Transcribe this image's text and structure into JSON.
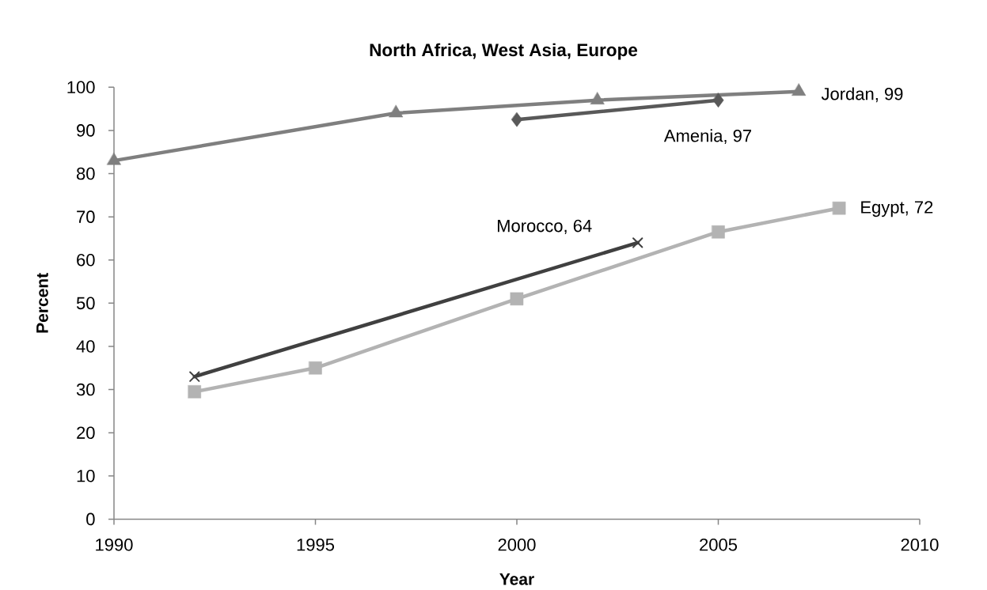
{
  "chart_data": {
    "type": "line",
    "title": "North Africa, West Asia, Europe",
    "xlabel": "Year",
    "ylabel": "Percent",
    "xlim": [
      1990,
      2010
    ],
    "xticks": [
      1990,
      1995,
      2000,
      2005,
      2010
    ],
    "ylim": [
      0,
      100
    ],
    "yticks": [
      0,
      10,
      20,
      30,
      40,
      50,
      60,
      70,
      80,
      90,
      100
    ],
    "series": [
      {
        "color": "#7f7f7f",
        "marker": "triangle",
        "x": [
          1990,
          1997,
          2002,
          2007
        ],
        "values": [
          83,
          94,
          97,
          99
        ]
      },
      {
        "color": "#595959",
        "marker": "diamond",
        "x": [
          2000,
          2005
        ],
        "values": [
          92.5,
          97
        ]
      },
      {
        "color": "#404040",
        "marker": "cross",
        "x": [
          1992,
          2003
        ],
        "values": [
          33,
          64
        ]
      },
      {
        "color": "#b3b3b3",
        "marker": "square",
        "x": [
          1992,
          1995,
          2000,
          2005,
          2008
        ],
        "values": [
          29.5,
          35,
          51,
          66.5,
          72
        ]
      }
    ],
    "annotations": [
      {
        "text": "Jordan, 99",
        "x": 2007,
        "y": 99
      },
      {
        "text": "Amenia, 97",
        "x": 2005,
        "y": 97
      },
      {
        "text": "Morocco, 64",
        "x": 2003,
        "y": 64
      },
      {
        "text": "Egypt, 72",
        "x": 2008,
        "y": 72
      }
    ]
  }
}
